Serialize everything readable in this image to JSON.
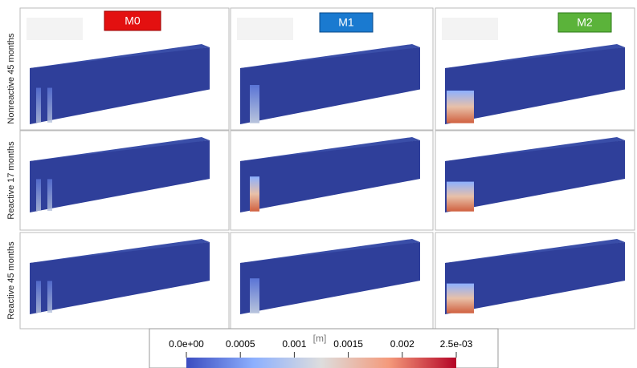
{
  "columns": [
    "M0",
    "M1",
    "M2"
  ],
  "rows": [
    "Nonreactive 45 months",
    "Reactive 17 months",
    "Reactive 45 months"
  ],
  "colorbar": {
    "unit": "[m]",
    "ticks": [
      "0.0e+00",
      "0.0005",
      "0.001",
      "0.0015",
      "0.002",
      "2.5e-03"
    ]
  }
}
